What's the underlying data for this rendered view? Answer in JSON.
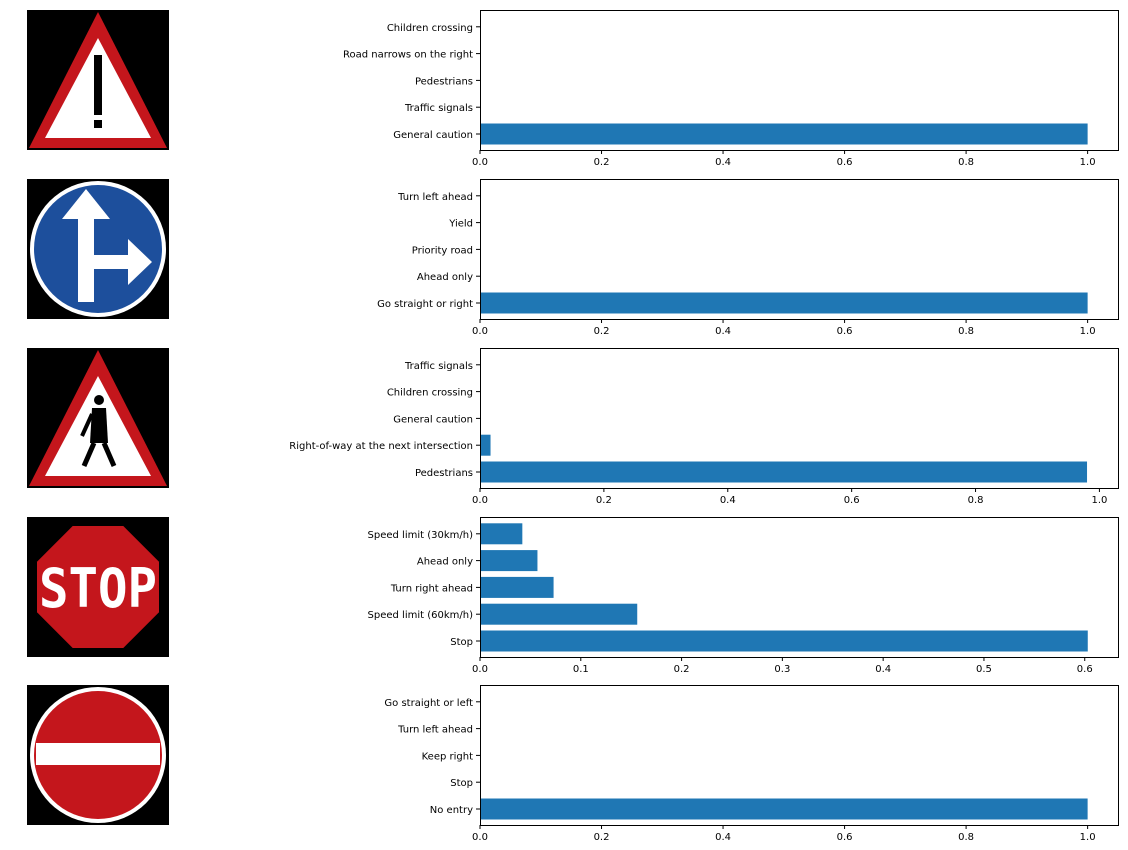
{
  "colors": {
    "bar": "#1f77b4",
    "axis": "#000000",
    "sign_red": "#c4161c",
    "sign_blue": "#1d4f9c",
    "sign_bg": "#000000",
    "sign_white": "#ffffff"
  },
  "chart_data": [
    {
      "type": "bar",
      "orientation": "horizontal",
      "sign_image": "general-caution-sign",
      "categories": [
        "General caution",
        "Traffic signals",
        "Pedestrians",
        "Road narrows on the right",
        "Children crossing"
      ],
      "values": [
        1.0,
        0.0,
        0.0,
        0.0,
        0.0
      ],
      "xlim": [
        0,
        1.05
      ],
      "xticks": [
        0,
        0.2,
        0.4,
        0.6,
        0.8,
        1.0
      ],
      "xtick_labels": [
        "0.0",
        "0.2",
        "0.4",
        "0.6",
        "0.8",
        "1.0"
      ],
      "title": "",
      "xlabel": "",
      "ylabel": "",
      "grid": false
    },
    {
      "type": "bar",
      "orientation": "horizontal",
      "sign_image": "go-straight-or-right-sign",
      "categories": [
        "Go straight or right",
        "Ahead only",
        "Priority road",
        "Yield",
        "Turn left ahead"
      ],
      "values": [
        1.0,
        0.0,
        0.0,
        0.0,
        0.0
      ],
      "xlim": [
        0,
        1.05
      ],
      "xticks": [
        0,
        0.2,
        0.4,
        0.6,
        0.8,
        1.0
      ],
      "xtick_labels": [
        "0.0",
        "0.2",
        "0.4",
        "0.6",
        "0.8",
        "1.0"
      ],
      "title": "",
      "xlabel": "",
      "ylabel": "",
      "grid": false
    },
    {
      "type": "bar",
      "orientation": "horizontal",
      "sign_image": "pedestrians-sign",
      "categories": [
        "Pedestrians",
        "Right-of-way at the next intersection",
        "General caution",
        "Children crossing",
        "Traffic signals"
      ],
      "values": [
        0.98,
        0.017,
        0.0,
        0.0,
        0.0
      ],
      "xlim": [
        0,
        1.03
      ],
      "xticks": [
        0,
        0.2,
        0.4,
        0.6,
        0.8,
        1.0
      ],
      "xtick_labels": [
        "0.0",
        "0.2",
        "0.4",
        "0.6",
        "0.8",
        "1.0"
      ],
      "title": "",
      "xlabel": "",
      "ylabel": "",
      "grid": false
    },
    {
      "type": "bar",
      "orientation": "horizontal",
      "sign_image": "stop-sign",
      "categories": [
        "Stop",
        "Speed limit (60km/h)",
        "Turn right ahead",
        "Ahead only",
        "Speed limit (30km/h)"
      ],
      "values": [
        0.603,
        0.156,
        0.073,
        0.057,
        0.042
      ],
      "xlim": [
        0,
        0.633
      ],
      "xticks": [
        0,
        0.1,
        0.2,
        0.3,
        0.4,
        0.5,
        0.6
      ],
      "xtick_labels": [
        "0.0",
        "0.1",
        "0.2",
        "0.3",
        "0.4",
        "0.5",
        "0.6"
      ],
      "title": "",
      "xlabel": "",
      "ylabel": "",
      "grid": false
    },
    {
      "type": "bar",
      "orientation": "horizontal",
      "sign_image": "no-entry-sign",
      "categories": [
        "No entry",
        "Stop",
        "Keep right",
        "Turn left ahead",
        "Go straight or left"
      ],
      "values": [
        1.0,
        0.0,
        0.0,
        0.0,
        0.0
      ],
      "xlim": [
        0,
        1.05
      ],
      "xticks": [
        0,
        0.2,
        0.4,
        0.6,
        0.8,
        1.0
      ],
      "xtick_labels": [
        "0.0",
        "0.2",
        "0.4",
        "0.6",
        "0.8",
        "1.0"
      ],
      "title": "",
      "xlabel": "",
      "ylabel": "",
      "grid": false
    }
  ]
}
